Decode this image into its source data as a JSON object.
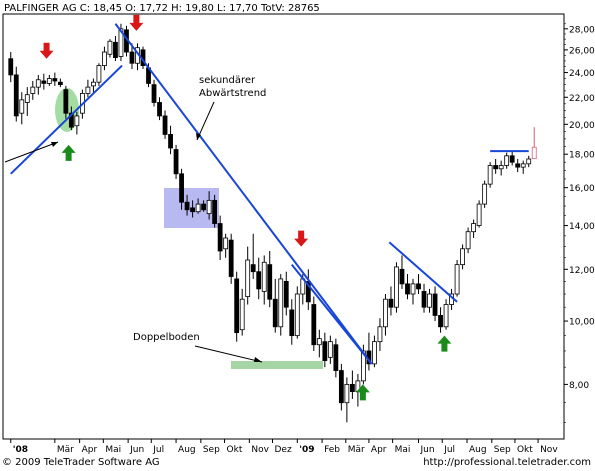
{
  "header_text": "PALFINGER AG C: 18,45 O: 17,72 H: 19,80 L: 17,70 TotV: 28765",
  "footer": {
    "left": "© 2009 TeleTrader Software AG",
    "right": "http://professional.teletrader.com"
  },
  "annotations": {
    "trend_label_line1": "sekundärer",
    "trend_label_line2": "Abwärtstrend",
    "double_bottom": "Doppelboden"
  },
  "colors": {
    "trendline": "#1846d8",
    "up_arrow": "#1a8a1a",
    "down_arrow": "#d81818",
    "support_box": "#8ec98e",
    "consolidation_box": "#7f7fe8",
    "green_ellipse": "#7ccf7c",
    "candle": "#000000",
    "last_candle": "#d4607a"
  },
  "chart_data": {
    "type": "candlestick",
    "title": "PALFINGER AG C: 18,45 O: 17,72 H: 19,80 L: 17,70 TotV: 28765",
    "y_scale": "log",
    "ylim": [
      6.6,
      29.5
    ],
    "y_ticks": [
      8,
      10,
      12,
      14,
      16,
      18,
      20,
      22,
      24,
      26,
      28
    ],
    "y_tick_labels": [
      "8,00",
      "10,00",
      "12,00",
      "14,00",
      "16,00",
      "18,00",
      "20,00",
      "22,00",
      "24,00",
      "26,00",
      "28,00"
    ],
    "x_range_weeks": [
      0,
      98
    ],
    "x_ticks": [
      {
        "week": 0.5,
        "label": "'08"
      },
      {
        "week": 8.5,
        "label": "Mär"
      },
      {
        "week": 13,
        "label": "Apr"
      },
      {
        "week": 17.3,
        "label": "Mai"
      },
      {
        "week": 21.8,
        "label": "Jun"
      },
      {
        "week": 26,
        "label": "Jul"
      },
      {
        "week": 30.5,
        "label": "Aug"
      },
      {
        "week": 35,
        "label": "Sep"
      },
      {
        "week": 39.3,
        "label": "Okt"
      },
      {
        "week": 43.8,
        "label": "Nov"
      },
      {
        "week": 48,
        "label": "Dez"
      },
      {
        "week": 52.5,
        "label": "'09"
      },
      {
        "week": 57,
        "label": "Feb"
      },
      {
        "week": 61.3,
        "label": "Mär"
      },
      {
        "week": 65.5,
        "label": "Apr"
      },
      {
        "week": 69.8,
        "label": "Mai"
      },
      {
        "week": 74.5,
        "label": "Jun"
      },
      {
        "week": 78.8,
        "label": "Jul"
      },
      {
        "week": 83.3,
        "label": "Aug"
      },
      {
        "week": 87.8,
        "label": "Sep"
      },
      {
        "week": 92,
        "label": "Okt"
      },
      {
        "week": 96.2,
        "label": "Nov"
      }
    ],
    "candles": [
      [
        25.2,
        25.8,
        23.2,
        23.8
      ],
      [
        23.8,
        24.5,
        20.2,
        20.6
      ],
      [
        20.8,
        22.4,
        20.0,
        21.8
      ],
      [
        21.6,
        22.8,
        20.6,
        22.2
      ],
      [
        22.3,
        23.3,
        21.8,
        22.8
      ],
      [
        22.8,
        23.8,
        22.2,
        23.4
      ],
      [
        23.3,
        23.9,
        22.6,
        23.1
      ],
      [
        23.1,
        23.8,
        22.9,
        23.5
      ],
      [
        23.5,
        24.0,
        22.9,
        23.3
      ],
      [
        23.2,
        23.5,
        22.8,
        23.0
      ],
      [
        22.6,
        22.9,
        20.4,
        20.8
      ],
      [
        20.8,
        21.3,
        19.6,
        19.8
      ],
      [
        19.9,
        20.9,
        19.3,
        20.6
      ],
      [
        20.8,
        22.6,
        20.4,
        22.3
      ],
      [
        22.3,
        23.4,
        22.0,
        22.8
      ],
      [
        22.9,
        23.5,
        22.4,
        23.2
      ],
      [
        23.2,
        24.8,
        22.9,
        24.6
      ],
      [
        24.6,
        26.3,
        24.2,
        25.8
      ],
      [
        25.6,
        27.0,
        25.3,
        26.8
      ],
      [
        26.7,
        27.3,
        25.0,
        25.3
      ],
      [
        25.4,
        28.5,
        25.0,
        28.0
      ],
      [
        27.9,
        28.3,
        25.4,
        25.8
      ],
      [
        25.8,
        26.6,
        24.3,
        24.8
      ],
      [
        24.8,
        26.6,
        24.2,
        26.2
      ],
      [
        26.0,
        26.3,
        24.3,
        24.6
      ],
      [
        24.4,
        24.8,
        22.8,
        23.1
      ],
      [
        23.0,
        23.4,
        21.3,
        21.6
      ],
      [
        21.6,
        22.0,
        20.3,
        20.6
      ],
      [
        20.6,
        21.0,
        19.0,
        19.3
      ],
      [
        19.3,
        19.9,
        18.0,
        18.4
      ],
      [
        18.3,
        18.6,
        16.5,
        16.8
      ],
      [
        16.8,
        17.1,
        14.8,
        15.2
      ],
      [
        15.2,
        15.6,
        14.5,
        14.8
      ],
      [
        14.9,
        15.3,
        14.4,
        14.7
      ],
      [
        14.7,
        15.4,
        14.6,
        15.1
      ],
      [
        15.1,
        15.3,
        14.7,
        14.8
      ],
      [
        14.6,
        15.8,
        14.3,
        15.3
      ],
      [
        15.3,
        15.6,
        13.9,
        14.1
      ],
      [
        14.1,
        14.5,
        12.4,
        12.8
      ],
      [
        12.9,
        13.6,
        12.5,
        13.4
      ],
      [
        13.3,
        13.6,
        11.4,
        11.7
      ],
      [
        11.6,
        11.9,
        9.3,
        9.6
      ],
      [
        9.7,
        11.2,
        9.5,
        10.8
      ],
      [
        10.9,
        13.0,
        10.6,
        12.4
      ],
      [
        12.2,
        13.6,
        11.6,
        11.9
      ],
      [
        11.9,
        12.5,
        10.8,
        11.2
      ],
      [
        11.1,
        12.6,
        10.6,
        12.3
      ],
      [
        12.2,
        12.8,
        10.5,
        10.8
      ],
      [
        10.8,
        11.6,
        9.6,
        9.8
      ],
      [
        9.8,
        11.8,
        9.5,
        11.6
      ],
      [
        11.5,
        11.9,
        10.2,
        10.5
      ],
      [
        10.4,
        10.8,
        9.2,
        9.5
      ],
      [
        9.5,
        11.3,
        9.4,
        11.0
      ],
      [
        11.0,
        11.8,
        10.6,
        11.6
      ],
      [
        11.5,
        12.0,
        10.4,
        10.7
      ],
      [
        10.6,
        10.9,
        9.0,
        9.2
      ],
      [
        9.2,
        9.7,
        8.8,
        9.4
      ],
      [
        9.3,
        9.6,
        8.5,
        8.7
      ],
      [
        8.8,
        9.5,
        8.6,
        9.3
      ],
      [
        9.2,
        9.4,
        8.2,
        8.4
      ],
      [
        8.4,
        8.6,
        7.3,
        7.5
      ],
      [
        7.5,
        8.2,
        7.0,
        8.0
      ],
      [
        8.0,
        8.4,
        7.6,
        7.8
      ],
      [
        7.8,
        8.3,
        7.4,
        8.1
      ],
      [
        8.1,
        9.2,
        8.0,
        9.0
      ],
      [
        9.0,
        9.6,
        8.4,
        8.6
      ],
      [
        8.6,
        9.5,
        8.5,
        9.3
      ],
      [
        9.3,
        10.1,
        9.0,
        9.8
      ],
      [
        9.8,
        11.0,
        9.5,
        10.8
      ],
      [
        10.8,
        11.3,
        10.2,
        10.5
      ],
      [
        10.5,
        12.3,
        10.3,
        12.1
      ],
      [
        12.0,
        12.6,
        11.2,
        11.4
      ],
      [
        11.4,
        11.8,
        10.8,
        11.0
      ],
      [
        11.0,
        11.6,
        10.6,
        11.4
      ],
      [
        11.4,
        11.8,
        11.0,
        11.2
      ],
      [
        11.1,
        11.4,
        10.3,
        10.5
      ],
      [
        10.5,
        11.2,
        10.3,
        11.0
      ],
      [
        11.0,
        11.3,
        10.0,
        10.2
      ],
      [
        10.2,
        10.5,
        9.6,
        9.8
      ],
      [
        9.8,
        10.8,
        9.7,
        10.6
      ],
      [
        10.6,
        11.2,
        10.4,
        11.0
      ],
      [
        11.0,
        12.4,
        10.9,
        12.2
      ],
      [
        12.2,
        13.1,
        12.0,
        12.9
      ],
      [
        12.9,
        13.9,
        12.7,
        13.7
      ],
      [
        13.7,
        14.3,
        13.4,
        14.1
      ],
      [
        14.0,
        15.3,
        13.9,
        15.1
      ],
      [
        15.1,
        16.4,
        14.9,
        16.2
      ],
      [
        16.2,
        17.5,
        16.0,
        17.3
      ],
      [
        17.3,
        17.7,
        16.8,
        17.1
      ],
      [
        17.1,
        17.6,
        16.7,
        17.3
      ],
      [
        17.3,
        18.1,
        17.1,
        17.9
      ],
      [
        17.9,
        18.2,
        17.3,
        17.5
      ],
      [
        17.4,
        17.7,
        16.9,
        17.2
      ],
      [
        17.2,
        17.6,
        16.8,
        17.4
      ],
      [
        17.4,
        17.9,
        17.2,
        17.7
      ],
      [
        17.72,
        19.8,
        17.7,
        18.45
      ]
    ],
    "trendlines": [
      {
        "from": [
          0.5,
          16.8
        ],
        "to": [
          20.7,
          24.6
        ]
      },
      {
        "from": [
          19.5,
          28.5
        ],
        "to": [
          66.0,
          8.6
        ]
      },
      {
        "from": [
          51.5,
          12.2
        ],
        "to": [
          66.0,
          8.6
        ]
      },
      {
        "from": [
          69.2,
          13.2
        ],
        "to": [
          81.5,
          10.7
        ]
      },
      {
        "from": [
          87.5,
          18.2
        ],
        "to": [
          94.5,
          18.2
        ]
      },
      {
        "from": [
          0.0,
          15.5
        ],
        "to": [
          9.5,
          19.2
        ]
      },
      {
        "from": [
          35.0,
          21.0
        ],
        "to": [
          32.5,
          18.8
        ]
      },
      {
        "from": [
          39.5,
          9.45
        ],
        "to": [
          53.3,
          9.3
        ]
      }
    ],
    "arrows_down": [
      {
        "week": 7,
        "price": 25.2
      },
      {
        "week": 23.3,
        "price": 27.8
      },
      {
        "week": 53.2,
        "price": 13.0
      }
    ],
    "arrows_up": [
      {
        "week": 11,
        "price": 18.6
      },
      {
        "week": 64.4,
        "price": 8.0
      },
      {
        "week": 79.2,
        "price": 9.5
      }
    ]
  }
}
